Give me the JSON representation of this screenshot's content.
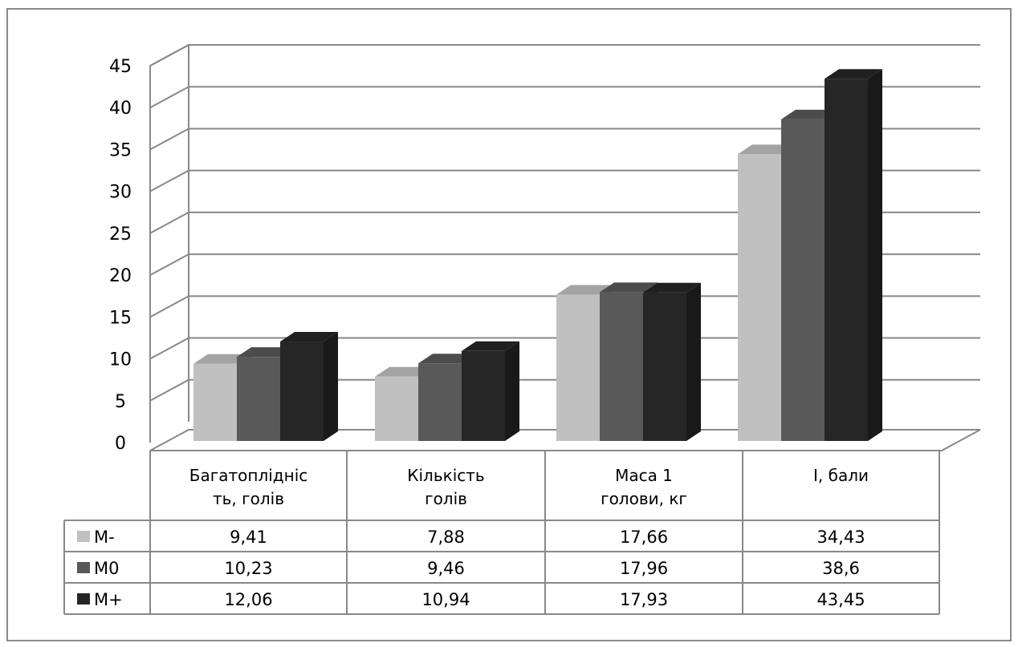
{
  "chart_data": {
    "type": "bar",
    "title": "",
    "xlabel": "",
    "ylabel": "",
    "ylim": [
      0,
      45
    ],
    "yticks": [
      "0",
      "5",
      "10",
      "15",
      "20",
      "25",
      "30",
      "35",
      "40",
      "45"
    ],
    "categories": [
      [
        "Багатоплідніс",
        "ть, голів"
      ],
      [
        "Кількість",
        "голів"
      ],
      [
        "Маса 1",
        "голови, кг"
      ],
      [
        "І, бали"
      ]
    ],
    "series": [
      {
        "name": "M-",
        "color": "#c0c0c0",
        "values": [
          9.41,
          7.88,
          17.66,
          34.43
        ],
        "labels": [
          "9,41",
          "7,88",
          "17,66",
          "34,43"
        ]
      },
      {
        "name": "M0",
        "color": "#595959",
        "values": [
          10.23,
          9.46,
          17.96,
          38.6
        ],
        "labels": [
          "10,23",
          "9,46",
          "17,96",
          "38,6"
        ]
      },
      {
        "name": "M+",
        "color": "#262626",
        "values": [
          12.06,
          10.94,
          17.93,
          43.45
        ],
        "labels": [
          "12,06",
          "10,94",
          "17,93",
          "43,45"
        ]
      }
    ],
    "grid": true,
    "legend": "data-table",
    "style": "3d-clustered-column"
  }
}
